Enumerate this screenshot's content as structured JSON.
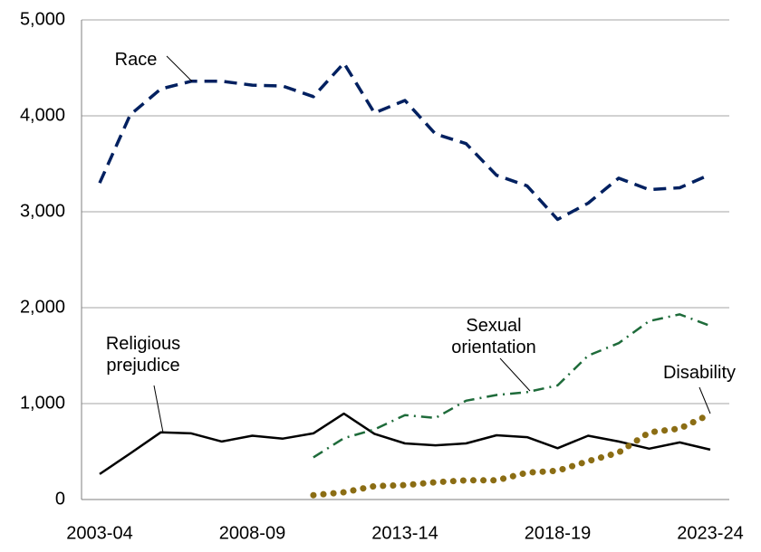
{
  "chart_data": {
    "type": "line",
    "categories": [
      "2003-04",
      null,
      null,
      null,
      null,
      "2008-09",
      null,
      null,
      null,
      null,
      "2013-14",
      null,
      null,
      null,
      null,
      "2018-19",
      null,
      null,
      null,
      null,
      "2023-24"
    ],
    "ylim": [
      0,
      5000
    ],
    "yticks": [
      0,
      {
        "value": 1000,
        "label": "1,000"
      },
      {
        "value": 2000,
        "label": "2,000"
      },
      {
        "value": 3000,
        "label": "3,000"
      },
      {
        "value": 4000,
        "label": "4,000"
      },
      {
        "value": 5000,
        "label": "5,000"
      }
    ],
    "grid": true,
    "series": [
      {
        "name": "Race",
        "color": "#002060",
        "dash": "dashed",
        "values": [
          3300,
          4010,
          4280,
          4360,
          4360,
          4320,
          4310,
          4200,
          4550,
          4030,
          4160,
          3810,
          3710,
          3380,
          3270,
          2920,
          3090,
          3350,
          3230,
          3250,
          3390
        ]
      },
      {
        "name": "Religious prejudice",
        "color": "#000000",
        "dash": "solid",
        "values": [
          265,
          480,
          700,
          690,
          605,
          665,
          635,
          690,
          895,
          685,
          585,
          565,
          585,
          670,
          650,
          535,
          665,
          605,
          530,
          595,
          520
        ]
      },
      {
        "name": "Sexual orientation",
        "color": "#1e6b3a",
        "dash": "dash-dot",
        "values": [
          null,
          null,
          null,
          null,
          null,
          null,
          null,
          440,
          640,
          730,
          880,
          850,
          1030,
          1090,
          1120,
          1190,
          1500,
          1630,
          1860,
          1930,
          1810
        ]
      },
      {
        "name": "Disability",
        "color": "#8b6d14",
        "dash": "dotted",
        "values": [
          null,
          null,
          null,
          null,
          null,
          null,
          null,
          45,
          75,
          140,
          150,
          180,
          200,
          200,
          280,
          300,
          400,
          490,
          700,
          740,
          890
        ]
      }
    ]
  }
}
